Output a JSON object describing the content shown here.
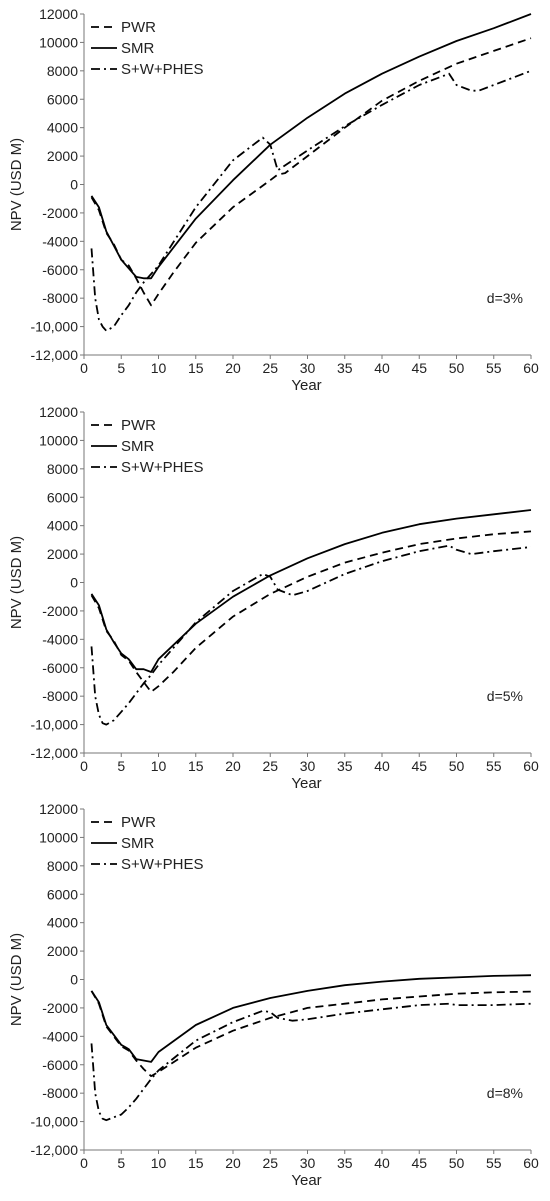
{
  "chart_data": [
    {
      "type": "line",
      "xlabel": "Year",
      "ylabel": "NPV (USD M)",
      "annotation": "d=3%",
      "xlim": [
        0,
        60
      ],
      "ylim": [
        -12000,
        12000
      ],
      "xticks": [
        "0",
        "5",
        "10",
        "15",
        "20",
        "25",
        "30",
        "35",
        "40",
        "45",
        "50",
        "55",
        "60"
      ],
      "yticks": [
        "-12,000",
        "-10,000",
        "-8000",
        "-6000",
        "-4000",
        "-2000",
        "0",
        "2000",
        "4000",
        "6000",
        "8000",
        "10000",
        "12000"
      ],
      "grid": false,
      "legend": "top-left",
      "series": [
        {
          "name": "PWR",
          "style": "dashed",
          "x": [
            1,
            2,
            3,
            4,
            5,
            6,
            7,
            8,
            9,
            10,
            12,
            15,
            20,
            25,
            26,
            27,
            28,
            30,
            35,
            40,
            45,
            50,
            55,
            60
          ],
          "y": [
            -900,
            -1800,
            -3400,
            -4200,
            -5300,
            -5700,
            -6600,
            -7600,
            -8500,
            -7700,
            -6200,
            -4100,
            -1600,
            300,
            700,
            800,
            1200,
            2000,
            4000,
            5900,
            7300,
            8500,
            9400,
            10300
          ]
        },
        {
          "name": "SMR",
          "style": "solid",
          "x": [
            1,
            2,
            3,
            4,
            5,
            6,
            7,
            8,
            9,
            10,
            15,
            20,
            25,
            30,
            35,
            40,
            45,
            50,
            55,
            60
          ],
          "y": [
            -800,
            -1600,
            -3300,
            -4300,
            -5300,
            -5900,
            -6500,
            -6600,
            -6600,
            -5800,
            -2400,
            300,
            2800,
            4700,
            6400,
            7800,
            9000,
            10100,
            11000,
            12000
          ]
        },
        {
          "name": "S+W+PHES",
          "style": "dashdot",
          "x": [
            1,
            1.5,
            2,
            2.5,
            3,
            4,
            5,
            6,
            7,
            8,
            9,
            10,
            15,
            20,
            24,
            25,
            26,
            30,
            35,
            40,
            45,
            49,
            50,
            52,
            53,
            55,
            60
          ],
          "y": [
            -4500,
            -8000,
            -9500,
            -10000,
            -10300,
            -10000,
            -9200,
            -8500,
            -7600,
            -6900,
            -6300,
            -5700,
            -1600,
            1700,
            3300,
            2800,
            1000,
            2400,
            4100,
            5600,
            7000,
            7800,
            7000,
            6600,
            6600,
            7000,
            8000
          ]
        }
      ]
    },
    {
      "type": "line",
      "xlabel": "Year",
      "ylabel": "NPV (USD M)",
      "annotation": "d=5%",
      "xlim": [
        0,
        60
      ],
      "ylim": [
        -12000,
        12000
      ],
      "xticks": [
        "0",
        "5",
        "10",
        "15",
        "20",
        "25",
        "30",
        "35",
        "40",
        "45",
        "50",
        "55",
        "60"
      ],
      "yticks": [
        "-12,000",
        "-10,000",
        "-8000",
        "-6000",
        "-4000",
        "-2000",
        "0",
        "2000",
        "4000",
        "6000",
        "8000",
        "10000",
        "12000"
      ],
      "grid": false,
      "legend": "top-left",
      "series": [
        {
          "name": "PWR",
          "style": "dashed",
          "x": [
            1,
            2,
            3,
            4,
            5,
            6,
            7,
            8,
            9,
            10,
            12,
            15,
            20,
            25,
            30,
            35,
            40,
            45,
            50,
            55,
            60
          ],
          "y": [
            -900,
            -1800,
            -3400,
            -4100,
            -5100,
            -5500,
            -6300,
            -7000,
            -7700,
            -7300,
            -6300,
            -4600,
            -2400,
            -800,
            400,
            1400,
            2100,
            2700,
            3100,
            3400,
            3600
          ]
        },
        {
          "name": "SMR",
          "style": "solid",
          "x": [
            1,
            2,
            3,
            4,
            5,
            6,
            7,
            8,
            9,
            10,
            15,
            20,
            25,
            30,
            35,
            40,
            45,
            50,
            55,
            60
          ],
          "y": [
            -800,
            -1600,
            -3300,
            -4200,
            -5000,
            -5400,
            -6100,
            -6100,
            -6300,
            -5400,
            -2900,
            -1000,
            500,
            1700,
            2700,
            3500,
            4100,
            4500,
            4800,
            5100
          ]
        },
        {
          "name": "S+W+PHES",
          "style": "dashdot",
          "x": [
            1,
            1.5,
            2,
            2.5,
            3,
            4,
            5,
            6,
            7,
            8,
            9,
            10,
            15,
            20,
            24,
            25,
            26,
            28,
            30,
            35,
            40,
            45,
            49,
            50,
            52,
            55,
            60
          ],
          "y": [
            -4500,
            -8000,
            -9300,
            -9900,
            -10000,
            -9700,
            -9100,
            -8500,
            -7800,
            -7100,
            -6500,
            -5800,
            -2800,
            -600,
            600,
            400,
            -500,
            -900,
            -600,
            600,
            1500,
            2200,
            2600,
            2300,
            2000,
            2200,
            2500
          ]
        }
      ]
    },
    {
      "type": "line",
      "xlabel": "Year",
      "ylabel": "NPV (USD M)",
      "annotation": "d=8%",
      "xlim": [
        0,
        60
      ],
      "ylim": [
        -12000,
        12000
      ],
      "xticks": [
        "0",
        "5",
        "10",
        "15",
        "20",
        "25",
        "30",
        "35",
        "40",
        "45",
        "50",
        "55",
        "60"
      ],
      "yticks": [
        "-12,000",
        "-10,000",
        "-8000",
        "-6000",
        "-4000",
        "-2000",
        "0",
        "2000",
        "4000",
        "6000",
        "8000",
        "10000",
        "12000"
      ],
      "grid": false,
      "legend": "top-left",
      "series": [
        {
          "name": "PWR",
          "style": "dashed",
          "x": [
            1,
            2,
            3,
            4,
            5,
            6,
            7,
            8,
            9,
            10,
            15,
            20,
            25,
            30,
            35,
            40,
            45,
            50,
            55,
            60
          ],
          "y": [
            -800,
            -1700,
            -3300,
            -4000,
            -4700,
            -5000,
            -5700,
            -6300,
            -6800,
            -6500,
            -4800,
            -3600,
            -2700,
            -2000,
            -1700,
            -1400,
            -1200,
            -1000,
            -900,
            -850
          ]
        },
        {
          "name": "SMR",
          "style": "solid",
          "x": [
            1,
            2,
            3,
            4,
            5,
            6,
            7,
            8,
            9,
            10,
            15,
            20,
            25,
            30,
            35,
            40,
            45,
            50,
            55,
            60
          ],
          "y": [
            -800,
            -1600,
            -3200,
            -3900,
            -4600,
            -4900,
            -5600,
            -5700,
            -5800,
            -5100,
            -3200,
            -2000,
            -1300,
            -800,
            -400,
            -150,
            50,
            150,
            250,
            300
          ]
        },
        {
          "name": "S+W+PHES",
          "style": "dashdot",
          "x": [
            1,
            1.5,
            2,
            2.5,
            3,
            4,
            5,
            6,
            7,
            8,
            9,
            10,
            15,
            20,
            24,
            25,
            26,
            28,
            30,
            35,
            40,
            45,
            49,
            50,
            52,
            55,
            60
          ],
          "y": [
            -4500,
            -8000,
            -9300,
            -9800,
            -9900,
            -9700,
            -9500,
            -9000,
            -8400,
            -7700,
            -7000,
            -6400,
            -4300,
            -3000,
            -2200,
            -2300,
            -2700,
            -2900,
            -2800,
            -2400,
            -2100,
            -1800,
            -1700,
            -1800,
            -1800,
            -1800,
            -1700
          ]
        }
      ]
    }
  ]
}
